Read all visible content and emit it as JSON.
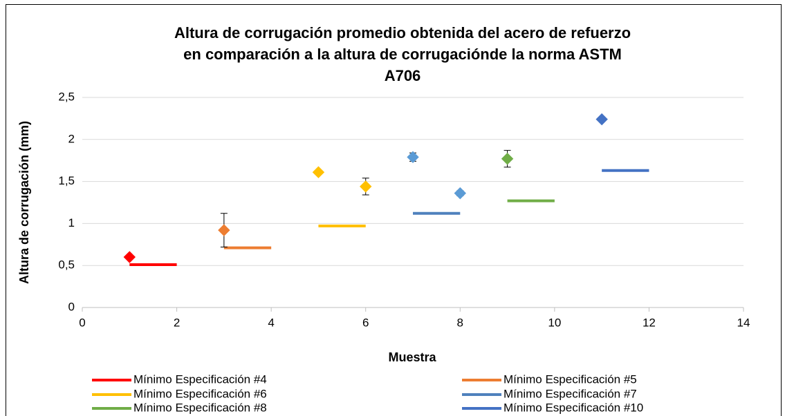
{
  "chart_data": {
    "type": "scatter",
    "title": [
      "Altura de corrugación promedio obtenida del acero de refuerzo",
      "en comparación a la altura de corrugaciónde la norma ASTM",
      "A706"
    ],
    "x_label": "Muestra",
    "y_label": "Altura de corrugación (mm)",
    "xlim": [
      0,
      14
    ],
    "xticks": [
      0,
      2,
      4,
      6,
      8,
      10,
      12,
      14
    ],
    "ylim": [
      0,
      2.5
    ],
    "yticks": [
      0,
      {
        "value": 0.5,
        "label": "0,5"
      },
      1,
      {
        "value": 1.5,
        "label": "1,5"
      },
      2,
      {
        "value": 2.5,
        "label": "2,5"
      }
    ],
    "grid": true,
    "legend": "bottom",
    "series": [
      {
        "name": "Mínimo Especificación #4",
        "color": "#ff0000",
        "x": [
          1,
          2
        ],
        "values": [
          0.51,
          0.51
        ]
      },
      {
        "name": "Mínimo Especificación #5",
        "color": "#ed7d31",
        "x": [
          3,
          4
        ],
        "values": [
          0.71,
          0.71
        ]
      },
      {
        "name": "Mínimo Especificación #6",
        "color": "#ffc000",
        "x": [
          5,
          6
        ],
        "values": [
          0.97,
          0.97
        ]
      },
      {
        "name": "Mínimo Especificación #7",
        "color": "#4f81bd",
        "x": [
          7,
          8
        ],
        "values": [
          1.12,
          1.12
        ]
      },
      {
        "name": "Mínimo Especificación #8",
        "color": "#70ad47",
        "x": [
          9,
          10
        ],
        "values": [
          1.27,
          1.27
        ]
      },
      {
        "name": "Mínimo Especificación #10",
        "color": "#4472c4",
        "x": [
          11,
          12
        ],
        "values": [
          1.63,
          1.63
        ]
      }
    ],
    "markers": {
      "x": [
        1,
        3,
        5,
        6,
        7,
        8,
        9,
        11
      ],
      "values": [
        0.6,
        0.92,
        1.61,
        1.44,
        1.79,
        1.36,
        1.77,
        2.24
      ],
      "errors": [
        null,
        0.2,
        null,
        0.1,
        0.05,
        0.03,
        0.1,
        null
      ],
      "colors": [
        "#ff0000",
        "#ed7d31",
        "#ffc000",
        "#ffc000",
        "#5b9bd5",
        "#5b9bd5",
        "#70ad47",
        "#4472c4"
      ]
    }
  }
}
